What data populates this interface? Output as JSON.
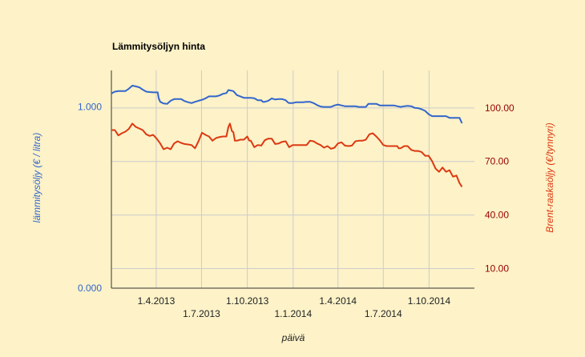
{
  "chart_data": {
    "type": "line",
    "title": "Lämmitysöljyn hinta",
    "xlabel": "päivä",
    "ylabel_left": "lämmitysöljy (€ / litra)",
    "ylabel_right": "Brent-raakaöljy (€/tynnyri)",
    "x_range": [
      "2013-01-01",
      "2014-12-31"
    ],
    "x_ticks": [
      {
        "date": "2013-04-01",
        "label": "1.4.2013",
        "row": 1
      },
      {
        "date": "2013-07-01",
        "label": "1.7.2013",
        "row": 2
      },
      {
        "date": "2013-10-01",
        "label": "1.10.2013",
        "row": 1
      },
      {
        "date": "2014-01-01",
        "label": "1.1.2014",
        "row": 2
      },
      {
        "date": "2014-04-01",
        "label": "1.4.2014",
        "row": 1
      },
      {
        "date": "2014-07-01",
        "label": "1.7.2014",
        "row": 2
      },
      {
        "date": "2014-10-01",
        "label": "1.10.2014",
        "row": 1
      }
    ],
    "y_left": {
      "range": [
        0,
        1.2
      ],
      "ticks": [
        {
          "value": 0,
          "label": "0.000"
        },
        {
          "value": 1.0,
          "label": "1.000"
        }
      ]
    },
    "y_right": {
      "range": [
        -1,
        121
      ],
      "ticks": [
        {
          "value": 10,
          "label": "10.00"
        },
        {
          "value": 40,
          "label": "40.00"
        },
        {
          "value": 70,
          "label": "70.00"
        },
        {
          "value": 100,
          "label": "100.00"
        }
      ]
    },
    "grid": true,
    "legend": "none",
    "series": [
      {
        "axis": "left",
        "color": "#3366cc",
        "points": [
          [
            "2013-01-01",
            1.073
          ],
          [
            "2013-01-08",
            1.083
          ],
          [
            "2013-01-15",
            1.086
          ],
          [
            "2013-01-22",
            1.086
          ],
          [
            "2013-01-29",
            1.086
          ],
          [
            "2013-02-05",
            1.099
          ],
          [
            "2013-02-12",
            1.116
          ],
          [
            "2013-02-19",
            1.112
          ],
          [
            "2013-02-26",
            1.107
          ],
          [
            "2013-03-05",
            1.094
          ],
          [
            "2013-03-12",
            1.083
          ],
          [
            "2013-03-19",
            1.081
          ],
          [
            "2013-03-26",
            1.079
          ],
          [
            "2013-04-02",
            1.079
          ],
          [
            "2013-04-04",
            1.079
          ],
          [
            "2013-04-06",
            1.047
          ],
          [
            "2013-04-09",
            1.027
          ],
          [
            "2013-04-16",
            1.018
          ],
          [
            "2013-04-23",
            1.016
          ],
          [
            "2013-04-30",
            1.033
          ],
          [
            "2013-05-07",
            1.042
          ],
          [
            "2013-05-14",
            1.042
          ],
          [
            "2013-05-21",
            1.042
          ],
          [
            "2013-05-28",
            1.031
          ],
          [
            "2013-06-04",
            1.025
          ],
          [
            "2013-06-11",
            1.02
          ],
          [
            "2013-06-18",
            1.027
          ],
          [
            "2013-06-25",
            1.033
          ],
          [
            "2013-07-02",
            1.038
          ],
          [
            "2013-07-09",
            1.046
          ],
          [
            "2013-07-16",
            1.057
          ],
          [
            "2013-07-23",
            1.057
          ],
          [
            "2013-07-30",
            1.057
          ],
          [
            "2013-08-06",
            1.062
          ],
          [
            "2013-08-13",
            1.071
          ],
          [
            "2013-08-20",
            1.075
          ],
          [
            "2013-08-24",
            1.092
          ],
          [
            "2013-08-27",
            1.09
          ],
          [
            "2013-09-03",
            1.086
          ],
          [
            "2013-09-10",
            1.064
          ],
          [
            "2013-09-17",
            1.057
          ],
          [
            "2013-09-24",
            1.049
          ],
          [
            "2013-10-01",
            1.049
          ],
          [
            "2013-10-08",
            1.049
          ],
          [
            "2013-10-15",
            1.047
          ],
          [
            "2013-10-22",
            1.036
          ],
          [
            "2013-10-29",
            1.036
          ],
          [
            "2013-11-01",
            1.027
          ],
          [
            "2013-11-05",
            1.027
          ],
          [
            "2013-11-12",
            1.033
          ],
          [
            "2013-11-19",
            1.046
          ],
          [
            "2013-11-26",
            1.04
          ],
          [
            "2013-12-03",
            1.042
          ],
          [
            "2013-12-10",
            1.042
          ],
          [
            "2013-12-17",
            1.036
          ],
          [
            "2013-12-21",
            1.025
          ],
          [
            "2013-12-24",
            1.02
          ],
          [
            "2013-12-31",
            1.02
          ],
          [
            "2014-01-07",
            1.025
          ],
          [
            "2014-01-14",
            1.025
          ],
          [
            "2014-01-21",
            1.025
          ],
          [
            "2014-01-28",
            1.027
          ],
          [
            "2014-02-04",
            1.027
          ],
          [
            "2014-02-11",
            1.02
          ],
          [
            "2014-02-18",
            1.009
          ],
          [
            "2014-02-25",
            1.001
          ],
          [
            "2014-03-04",
            0.999
          ],
          [
            "2014-03-11",
            0.999
          ],
          [
            "2014-03-18",
            0.999
          ],
          [
            "2014-03-25",
            1.007
          ],
          [
            "2014-04-01",
            1.012
          ],
          [
            "2014-04-08",
            1.007
          ],
          [
            "2014-04-15",
            1.003
          ],
          [
            "2014-04-22",
            1.003
          ],
          [
            "2014-04-29",
            1.003
          ],
          [
            "2014-05-06",
            1.003
          ],
          [
            "2014-05-13",
            0.999
          ],
          [
            "2014-05-20",
            0.999
          ],
          [
            "2014-05-27",
            0.999
          ],
          [
            "2014-06-01",
            1.016
          ],
          [
            "2014-06-10",
            1.016
          ],
          [
            "2014-06-17",
            1.016
          ],
          [
            "2014-06-24",
            1.007
          ],
          [
            "2014-07-01",
            1.007
          ],
          [
            "2014-07-08",
            1.007
          ],
          [
            "2014-07-15",
            1.007
          ],
          [
            "2014-07-22",
            1.007
          ],
          [
            "2014-07-29",
            1.003
          ],
          [
            "2014-08-05",
            0.999
          ],
          [
            "2014-08-12",
            1.003
          ],
          [
            "2014-08-19",
            1.005
          ],
          [
            "2014-08-26",
            1.003
          ],
          [
            "2014-09-02",
            0.994
          ],
          [
            "2014-09-09",
            0.992
          ],
          [
            "2014-09-16",
            0.986
          ],
          [
            "2014-09-23",
            0.977
          ],
          [
            "2014-09-30",
            0.959
          ],
          [
            "2014-10-07",
            0.948
          ],
          [
            "2014-10-14",
            0.948
          ],
          [
            "2014-10-21",
            0.948
          ],
          [
            "2014-10-28",
            0.948
          ],
          [
            "2014-11-04",
            0.948
          ],
          [
            "2014-11-11",
            0.939
          ],
          [
            "2014-11-18",
            0.939
          ],
          [
            "2014-11-25",
            0.939
          ],
          [
            "2014-12-01",
            0.939
          ],
          [
            "2014-12-06",
            0.909
          ]
        ]
      },
      {
        "axis": "right",
        "color": "#dc3912",
        "points": [
          [
            "2013-01-01",
            87.6
          ],
          [
            "2013-01-08",
            87.6
          ],
          [
            "2013-01-15",
            84.6
          ],
          [
            "2013-01-22",
            85.8
          ],
          [
            "2013-01-29",
            86.7
          ],
          [
            "2013-02-05",
            88.2
          ],
          [
            "2013-02-12",
            91.2
          ],
          [
            "2013-02-19",
            89.4
          ],
          [
            "2013-02-26",
            88.5
          ],
          [
            "2013-03-05",
            87.6
          ],
          [
            "2013-03-12",
            85.2
          ],
          [
            "2013-03-19",
            84.3
          ],
          [
            "2013-03-26",
            84.9
          ],
          [
            "2013-04-02",
            82.8
          ],
          [
            "2013-04-09",
            80.1
          ],
          [
            "2013-04-16",
            76.8
          ],
          [
            "2013-04-23",
            77.7
          ],
          [
            "2013-04-30",
            76.8
          ],
          [
            "2013-05-07",
            80.1
          ],
          [
            "2013-05-14",
            81.3
          ],
          [
            "2013-05-21",
            80.4
          ],
          [
            "2013-05-28",
            79.8
          ],
          [
            "2013-06-04",
            79.5
          ],
          [
            "2013-06-11",
            79.2
          ],
          [
            "2013-06-18",
            77.4
          ],
          [
            "2013-06-25",
            81.3
          ],
          [
            "2013-07-02",
            86.1
          ],
          [
            "2013-07-09",
            84.9
          ],
          [
            "2013-07-16",
            84.0
          ],
          [
            "2013-07-23",
            81.6
          ],
          [
            "2013-07-30",
            83.1
          ],
          [
            "2013-08-06",
            83.7
          ],
          [
            "2013-08-13",
            84.0
          ],
          [
            "2013-08-20",
            84.0
          ],
          [
            "2013-08-24",
            89.4
          ],
          [
            "2013-08-27",
            91.2
          ],
          [
            "2013-08-31",
            87.0
          ],
          [
            "2013-09-03",
            86.4
          ],
          [
            "2013-09-06",
            81.6
          ],
          [
            "2013-09-10",
            81.6
          ],
          [
            "2013-09-17",
            82.2
          ],
          [
            "2013-09-24",
            82.2
          ],
          [
            "2013-10-01",
            84.0
          ],
          [
            "2013-10-05",
            81.6
          ],
          [
            "2013-10-08",
            81.6
          ],
          [
            "2013-10-15",
            78.0
          ],
          [
            "2013-10-22",
            79.2
          ],
          [
            "2013-10-29",
            78.9
          ],
          [
            "2013-11-05",
            81.9
          ],
          [
            "2013-11-12",
            82.8
          ],
          [
            "2013-11-19",
            82.8
          ],
          [
            "2013-11-26",
            79.8
          ],
          [
            "2013-12-03",
            80.1
          ],
          [
            "2013-12-10",
            81.0
          ],
          [
            "2013-12-17",
            81.3
          ],
          [
            "2013-12-24",
            78.0
          ],
          [
            "2013-12-31",
            79.2
          ],
          [
            "2014-01-07",
            79.2
          ],
          [
            "2014-01-14",
            79.2
          ],
          [
            "2014-01-21",
            79.2
          ],
          [
            "2014-01-28",
            79.2
          ],
          [
            "2014-02-04",
            81.6
          ],
          [
            "2014-02-11",
            81.3
          ],
          [
            "2014-02-18",
            80.1
          ],
          [
            "2014-02-25",
            79.2
          ],
          [
            "2014-03-04",
            77.7
          ],
          [
            "2014-03-11",
            78.6
          ],
          [
            "2014-03-18",
            77.1
          ],
          [
            "2014-03-25",
            77.7
          ],
          [
            "2014-04-01",
            80.1
          ],
          [
            "2014-04-08",
            80.7
          ],
          [
            "2014-04-15",
            78.9
          ],
          [
            "2014-04-22",
            78.6
          ],
          [
            "2014-04-29",
            78.9
          ],
          [
            "2014-05-06",
            81.3
          ],
          [
            "2014-05-13",
            81.6
          ],
          [
            "2014-05-20",
            81.6
          ],
          [
            "2014-05-27",
            82.2
          ],
          [
            "2014-06-03",
            85.2
          ],
          [
            "2014-06-10",
            85.8
          ],
          [
            "2014-06-17",
            84.0
          ],
          [
            "2014-06-24",
            81.9
          ],
          [
            "2014-07-01",
            79.2
          ],
          [
            "2014-07-08",
            78.6
          ],
          [
            "2014-07-15",
            78.6
          ],
          [
            "2014-07-22",
            78.6
          ],
          [
            "2014-07-29",
            78.6
          ],
          [
            "2014-08-01",
            77.4
          ],
          [
            "2014-08-05",
            77.4
          ],
          [
            "2014-08-12",
            78.6
          ],
          [
            "2014-08-19",
            78.6
          ],
          [
            "2014-08-26",
            76.5
          ],
          [
            "2014-09-02",
            75.9
          ],
          [
            "2014-09-09",
            75.9
          ],
          [
            "2014-09-16",
            75.3
          ],
          [
            "2014-09-23",
            73.2
          ],
          [
            "2014-09-30",
            73.2
          ],
          [
            "2014-10-07",
            70.2
          ],
          [
            "2014-10-14",
            66.0
          ],
          [
            "2014-10-21",
            64.2
          ],
          [
            "2014-10-28",
            66.6
          ],
          [
            "2014-11-04",
            64.2
          ],
          [
            "2014-11-11",
            65.1
          ],
          [
            "2014-11-18",
            61.5
          ],
          [
            "2014-11-25",
            62.1
          ],
          [
            "2014-12-01",
            57.9
          ],
          [
            "2014-12-06",
            55.8
          ]
        ]
      }
    ]
  }
}
